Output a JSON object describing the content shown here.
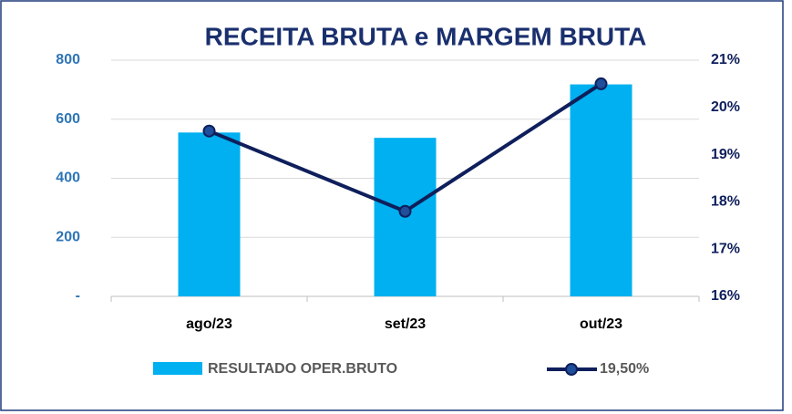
{
  "chart_data": {
    "type": "bar_line",
    "title": "RECEITA BRUTA e MARGEM BRUTA",
    "categories": [
      "ago/23",
      "set/23",
      "out/23"
    ],
    "series": [
      {
        "name": "RESULTADO  OPER.BRUTO",
        "color": "#00b0f0",
        "values": [
          555,
          537,
          718
        ]
      },
      {
        "name": "19,50%",
        "color": "#0f1f5c",
        "axis": "y2",
        "values": [
          19.5,
          17.8,
          20.5
        ]
      }
    ],
    "ylim": [
      0,
      800
    ],
    "yticks": [
      {
        "value": 0,
        "label": "-"
      },
      200,
      400,
      600,
      800
    ],
    "y2lim": [
      16,
      21
    ],
    "y2ticks": [
      {
        "value": 16,
        "label": "16%"
      },
      {
        "value": 17,
        "label": "17%"
      },
      {
        "value": 18,
        "label": "18%"
      },
      {
        "value": 19,
        "label": "19%"
      },
      {
        "value": 20,
        "label": "20%"
      },
      {
        "value": 21,
        "label": "21%"
      }
    ],
    "grid": true,
    "legend": "bottom"
  }
}
